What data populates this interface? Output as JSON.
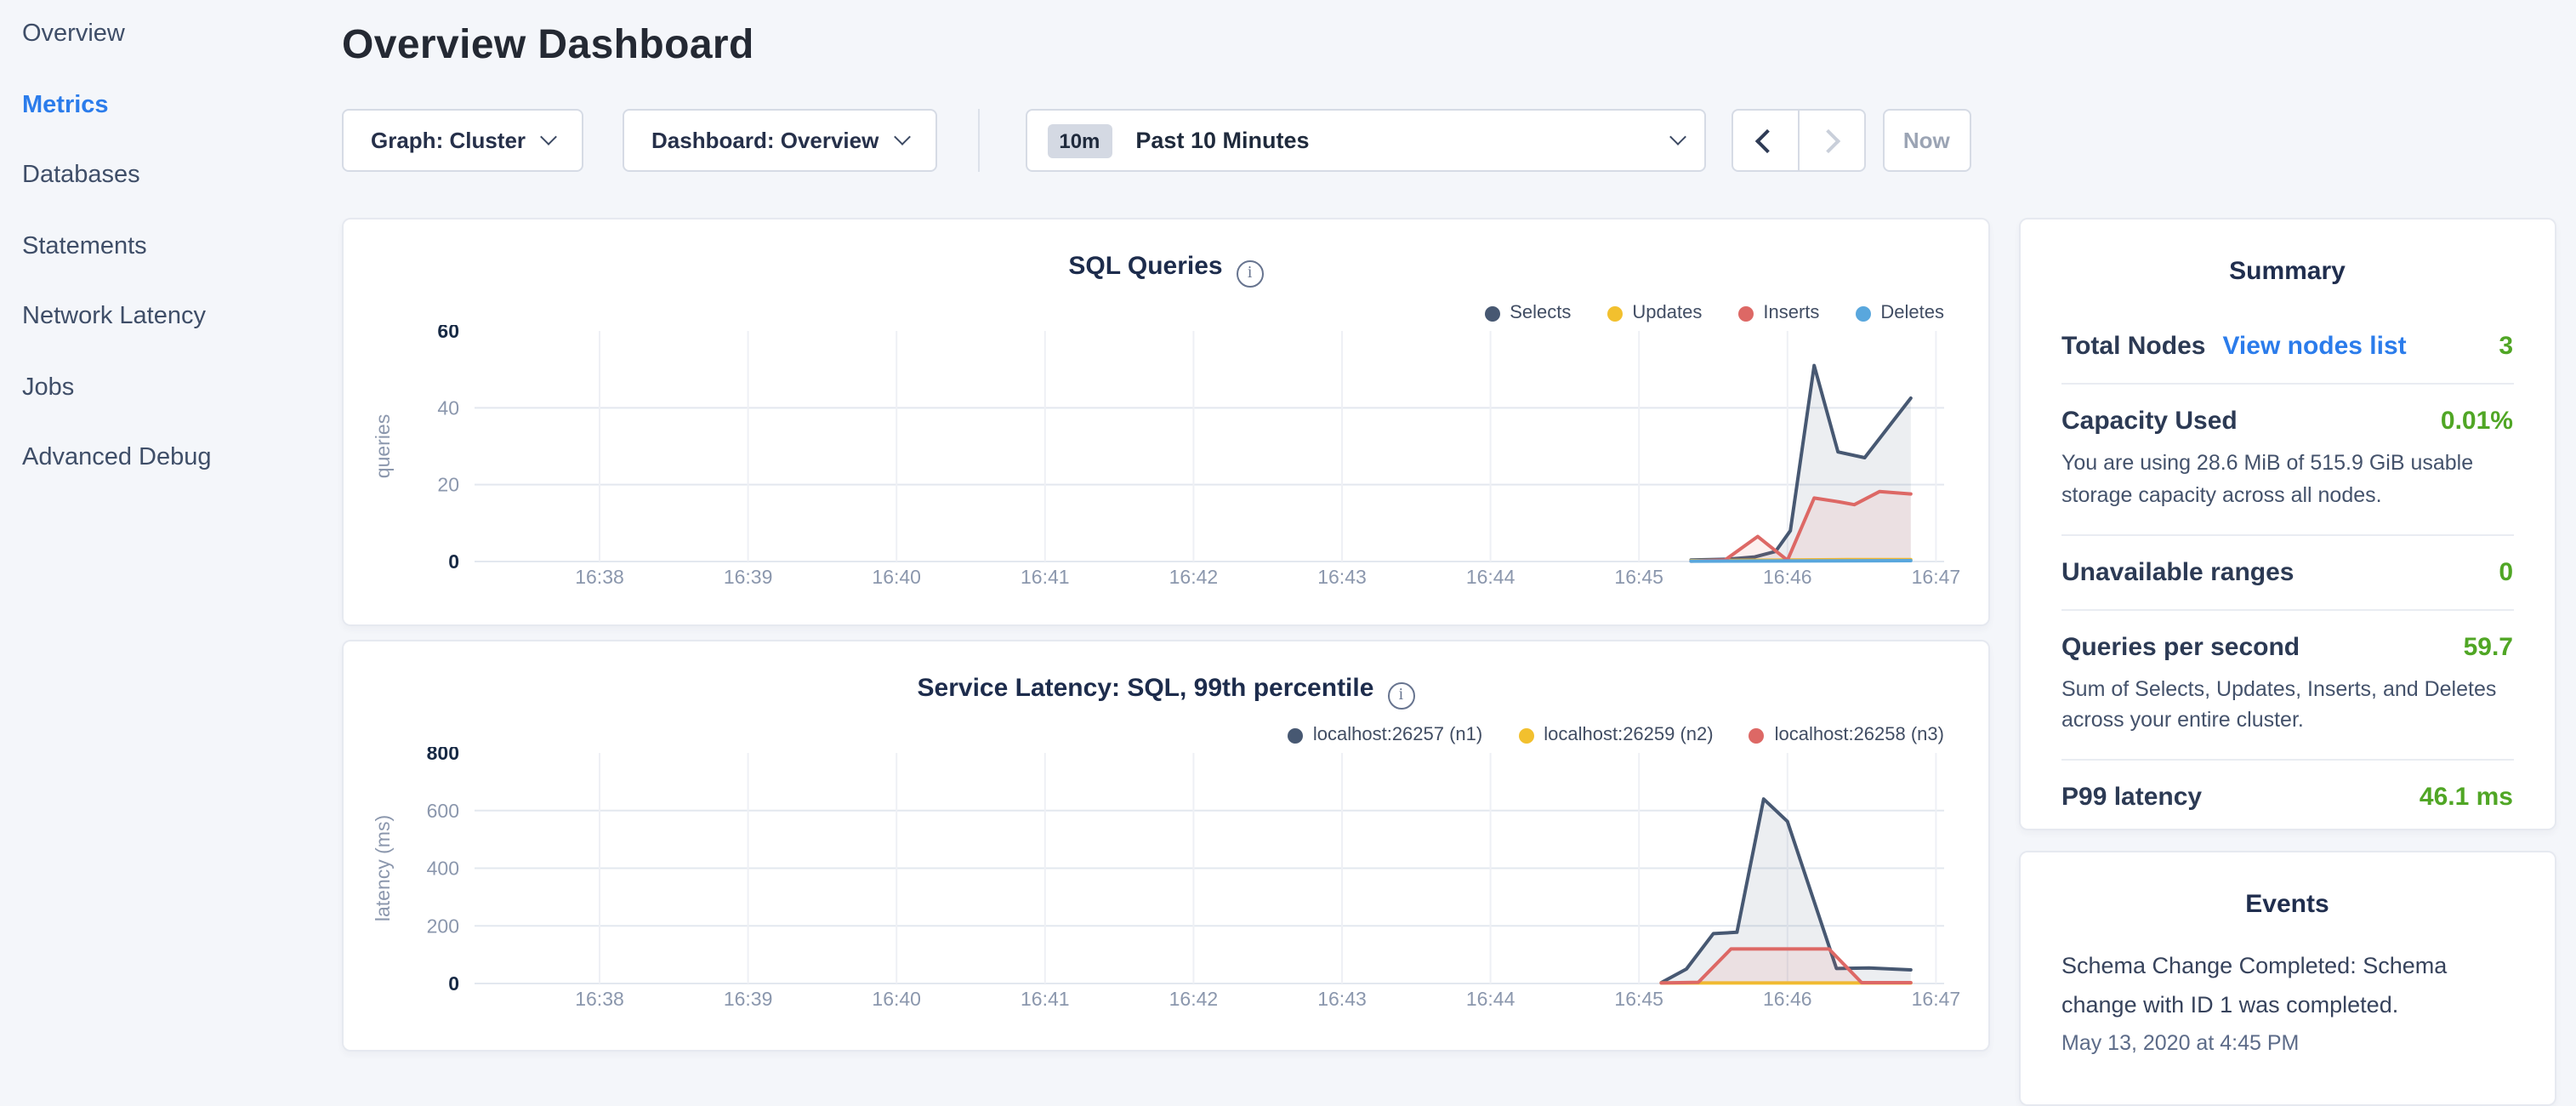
{
  "sidebar": {
    "items": [
      {
        "label": "Overview",
        "active": false
      },
      {
        "label": "Metrics",
        "active": true
      },
      {
        "label": "Databases",
        "active": false
      },
      {
        "label": "Statements",
        "active": false
      },
      {
        "label": "Network Latency",
        "active": false
      },
      {
        "label": "Jobs",
        "active": false
      },
      {
        "label": "Advanced Debug",
        "active": false
      }
    ]
  },
  "header": {
    "title": "Overview Dashboard"
  },
  "toolbar": {
    "graph_dropdown": "Graph: Cluster",
    "dashboard_dropdown": "Dashboard: Overview",
    "range_badge": "10m",
    "range_label": "Past 10 Minutes",
    "now_label": "Now"
  },
  "chart_data": [
    {
      "type": "area",
      "title": "SQL Queries",
      "xlabel": "",
      "ylabel": "queries",
      "x_ticks": [
        "16:38",
        "16:39",
        "16:40",
        "16:41",
        "16:42",
        "16:43",
        "16:44",
        "16:45",
        "16:46",
        "16:47"
      ],
      "y_ticks": [
        0,
        20,
        40,
        60
      ],
      "ylim": [
        0,
        60
      ],
      "grid": true,
      "legend_position": "top-right",
      "series": [
        {
          "name": "Selects",
          "color": "#475872",
          "points": [
            [
              7.35,
              0.4
            ],
            [
              7.6,
              0.6
            ],
            [
              7.78,
              1.2
            ],
            [
              7.92,
              2.6
            ],
            [
              8.02,
              8
            ],
            [
              8.18,
              51
            ],
            [
              8.34,
              28.5
            ],
            [
              8.52,
              27
            ],
            [
              8.83,
              42.5
            ]
          ]
        },
        {
          "name": "Updates",
          "color": "#f2c02e",
          "points": [
            [
              7.35,
              0.2
            ],
            [
              8.0,
              0.4
            ],
            [
              8.4,
              0.5
            ],
            [
              8.83,
              0.5
            ]
          ]
        },
        {
          "name": "Inserts",
          "color": "#dd6865",
          "points": [
            [
              7.35,
              0.1
            ],
            [
              7.58,
              0.4
            ],
            [
              7.8,
              6.5
            ],
            [
              8.0,
              0.3
            ],
            [
              8.18,
              16.5
            ],
            [
              8.35,
              15.5
            ],
            [
              8.45,
              14.8
            ],
            [
              8.62,
              18.2
            ],
            [
              8.83,
              17.6
            ]
          ]
        },
        {
          "name": "Deletes",
          "color": "#59a7dd",
          "points": [
            [
              7.35,
              0.1
            ],
            [
              8.83,
              0.2
            ]
          ]
        }
      ]
    },
    {
      "type": "area",
      "title": "Service Latency: SQL, 99th percentile",
      "xlabel": "",
      "ylabel": "latency (ms)",
      "x_ticks": [
        "16:38",
        "16:39",
        "16:40",
        "16:41",
        "16:42",
        "16:43",
        "16:44",
        "16:45",
        "16:46",
        "16:47"
      ],
      "y_ticks": [
        0,
        200,
        400,
        600,
        800
      ],
      "ylim": [
        0,
        800
      ],
      "grid": true,
      "legend_position": "top-right",
      "series": [
        {
          "name": "localhost:26257 (n1)",
          "color": "#475872",
          "points": [
            [
              7.15,
              3
            ],
            [
              7.32,
              50
            ],
            [
              7.5,
              173
            ],
            [
              7.66,
              178
            ],
            [
              7.84,
              640
            ],
            [
              8.0,
              562
            ],
            [
              8.33,
              52
            ],
            [
              8.55,
              54
            ],
            [
              8.83,
              47
            ]
          ]
        },
        {
          "name": "localhost:26259 (n2)",
          "color": "#f2c02e",
          "points": [
            [
              7.15,
              2
            ],
            [
              8.83,
              2
            ]
          ]
        },
        {
          "name": "localhost:26258 (n3)",
          "color": "#dd6865",
          "points": [
            [
              7.15,
              2
            ],
            [
              7.4,
              4
            ],
            [
              7.62,
              120
            ],
            [
              8.28,
              120
            ],
            [
              8.5,
              3
            ],
            [
              8.83,
              3
            ]
          ]
        }
      ]
    }
  ],
  "summary": {
    "title": "Summary",
    "total_nodes_label": "Total Nodes",
    "total_nodes_link": "View nodes list",
    "total_nodes_value": "3",
    "capacity_label": "Capacity Used",
    "capacity_value": "0.01%",
    "capacity_desc": "You are using 28.6 MiB of 515.9 GiB usable storage capacity across all nodes.",
    "unavailable_label": "Unavailable ranges",
    "unavailable_value": "0",
    "qps_label": "Queries per second",
    "qps_value": "59.7",
    "qps_desc": "Sum of Selects, Updates, Inserts, and Deletes across your entire cluster.",
    "p99_label": "P99 latency",
    "p99_value": "46.1 ms"
  },
  "events": {
    "title": "Events",
    "items": [
      {
        "text": "Schema Change Completed: Schema change with ID 1 was completed.",
        "time": "May 13, 2020 at 4:45 PM"
      }
    ]
  },
  "colors": {
    "accent_blue": "#2b7ceb",
    "status_green": "#50a625",
    "series_navy": "#475872",
    "series_yellow": "#f2c02e",
    "series_red": "#dd6865",
    "series_blue": "#59a7dd"
  }
}
